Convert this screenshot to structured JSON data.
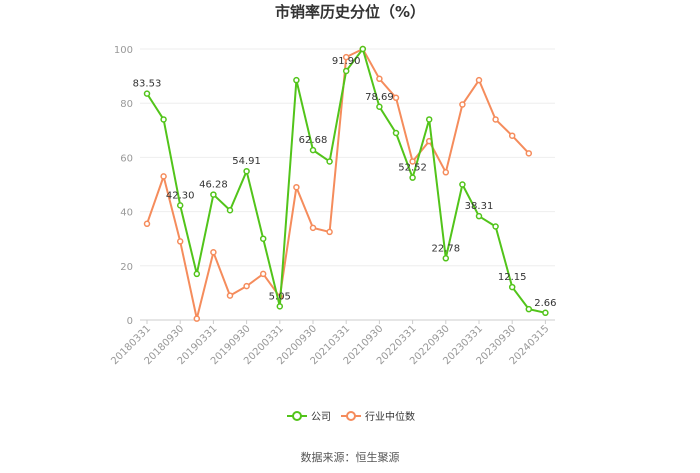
{
  "chart_data": {
    "type": "line",
    "title": "市销率历史分位（%）",
    "xlabel": "",
    "ylabel": "",
    "ylim": [
      0,
      100
    ],
    "yticks": [
      0,
      20,
      40,
      60,
      80,
      100
    ],
    "grid": true,
    "legend_position": "bottom",
    "x": [
      "20180331",
      "20180630",
      "20180930",
      "20181231",
      "20190331",
      "20190630",
      "20190930",
      "20191231",
      "20200331",
      "20200630",
      "20200930",
      "20201231",
      "20210331",
      "20210630",
      "20210930",
      "20211231",
      "20220331",
      "20220630",
      "20220930",
      "20221231",
      "20230331",
      "20230630",
      "20230930",
      "20231231",
      "20240315"
    ],
    "xtick_labels": [
      "20180331",
      "20180930",
      "20190331",
      "20190930",
      "20200331",
      "20200930",
      "20210331",
      "20210930",
      "20220331",
      "20220930",
      "20230331",
      "20230930",
      "20240315"
    ],
    "series": [
      {
        "name": "公司",
        "color": "#52c41a",
        "values": [
          83.53,
          74.0,
          42.3,
          17.0,
          46.28,
          40.5,
          54.91,
          30.0,
          5.05,
          88.5,
          62.68,
          58.5,
          91.9,
          100.0,
          78.69,
          69.0,
          52.52,
          74.0,
          22.78,
          50.0,
          38.31,
          34.5,
          12.15,
          4.0,
          2.66
        ],
        "labels": {
          "0": "83.53",
          "2": "42.30",
          "4": "46.28",
          "6": "54.91",
          "8": "5.05",
          "10": "62.68",
          "12": "91.90",
          "14": "78.69",
          "16": "52.52",
          "18": "22.78",
          "20": "38.31",
          "22": "12.15",
          "24": "2.66"
        }
      },
      {
        "name": "行业中位数",
        "color": "#f58c5c",
        "values": [
          35.5,
          53.0,
          29.0,
          0.5,
          25.0,
          9.0,
          12.5,
          17.0,
          8.5,
          49.0,
          34.0,
          32.5,
          97.0,
          100.0,
          89.0,
          82.0,
          58.5,
          66.0,
          54.5,
          79.5,
          88.5,
          74.0,
          68.0,
          61.5,
          null
        ]
      }
    ]
  },
  "source": "数据来源：恒生聚源"
}
